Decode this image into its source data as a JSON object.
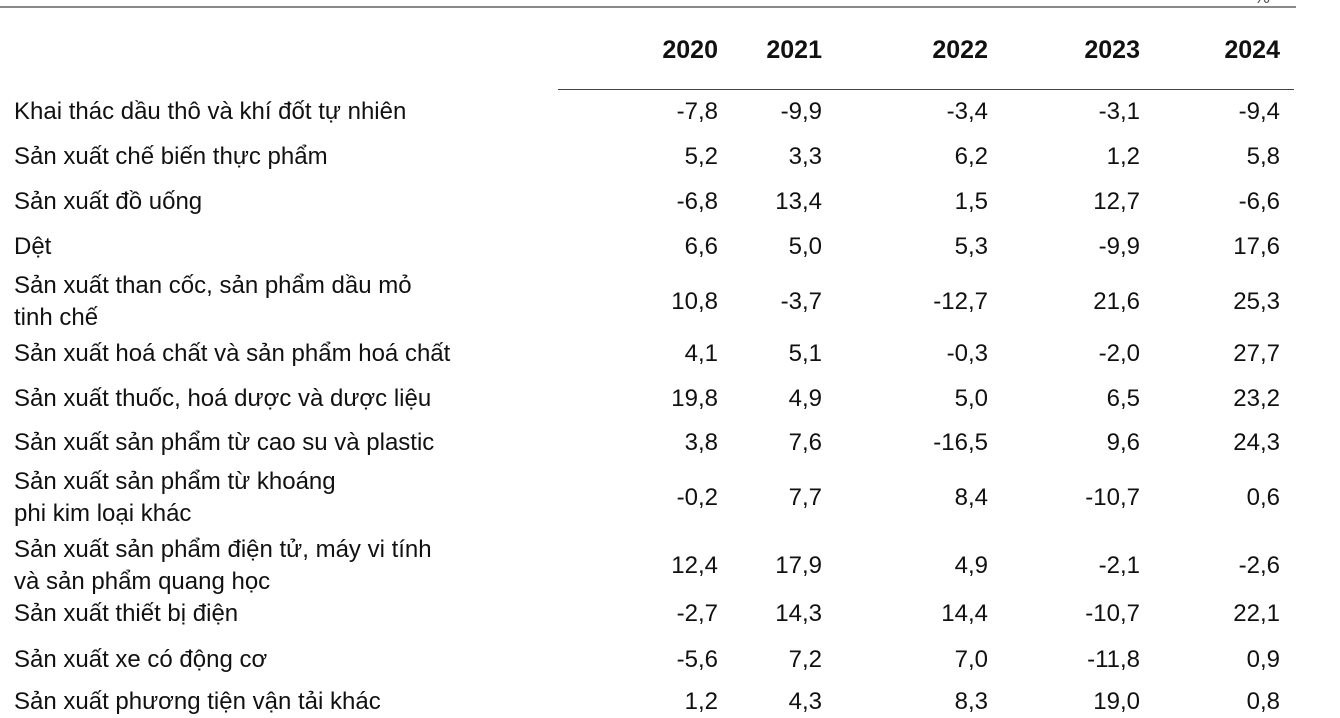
{
  "table": {
    "corner_mark": "%",
    "years": [
      "2020",
      "2021",
      "2022",
      "2023",
      "2024"
    ],
    "rows": [
      {
        "label": [
          "Khai thác dầu thô và khí đốt tự nhiên"
        ],
        "values": [
          "-7,8",
          "-9,9",
          "-3,4",
          "-3,1",
          "-9,4"
        ]
      },
      {
        "label": [
          "Sản xuất chế biến thực phẩm"
        ],
        "values": [
          "5,2",
          "3,3",
          "6,2",
          "1,2",
          "5,8"
        ]
      },
      {
        "label": [
          "Sản xuất đồ uống"
        ],
        "values": [
          "-6,8",
          "13,4",
          "1,5",
          "12,7",
          "-6,6"
        ]
      },
      {
        "label": [
          "Dệt"
        ],
        "values": [
          "6,6",
          "5,0",
          "5,3",
          "-9,9",
          "17,6"
        ]
      },
      {
        "label": [
          "Sản xuất than cốc, sản phẩm dầu mỏ",
          "tinh chế"
        ],
        "values": [
          "10,8",
          "-3,7",
          "-12,7",
          "21,6",
          "25,3"
        ]
      },
      {
        "label": [
          "Sản xuất hoá chất và sản phẩm hoá chất"
        ],
        "values": [
          "4,1",
          "5,1",
          "-0,3",
          "-2,0",
          "27,7"
        ]
      },
      {
        "label": [
          "Sản xuất thuốc, hoá dược và dược liệu"
        ],
        "values": [
          "19,8",
          "4,9",
          "5,0",
          "6,5",
          "23,2"
        ]
      },
      {
        "label": [
          "Sản xuất sản phẩm từ cao su và plastic"
        ],
        "values": [
          "3,8",
          "7,6",
          "-16,5",
          "9,6",
          "24,3"
        ]
      },
      {
        "label": [
          "Sản xuất sản phẩm từ khoáng",
          "phi kim loại khác"
        ],
        "values": [
          "-0,2",
          "7,7",
          "8,4",
          "-10,7",
          "0,6"
        ]
      },
      {
        "label": [
          "Sản xuất sản phẩm điện tử, máy vi tính",
          "và sản phẩm quang học"
        ],
        "values": [
          "12,4",
          "17,9",
          "4,9",
          "-2,1",
          "-2,6"
        ]
      },
      {
        "label": [
          "Sản xuất thiết bị điện"
        ],
        "values": [
          "-2,7",
          "14,3",
          "14,4",
          "-10,7",
          "22,1"
        ]
      },
      {
        "label": [
          "Sản xuất xe có động cơ"
        ],
        "values": [
          "-5,6",
          "7,2",
          "7,0",
          "-11,8",
          "0,9"
        ]
      },
      {
        "label": [
          "Sản xuất phương tiện vận tải khác"
        ],
        "values": [
          "1,2",
          "4,3",
          "8,3",
          "19,0",
          "0,8"
        ]
      }
    ]
  }
}
